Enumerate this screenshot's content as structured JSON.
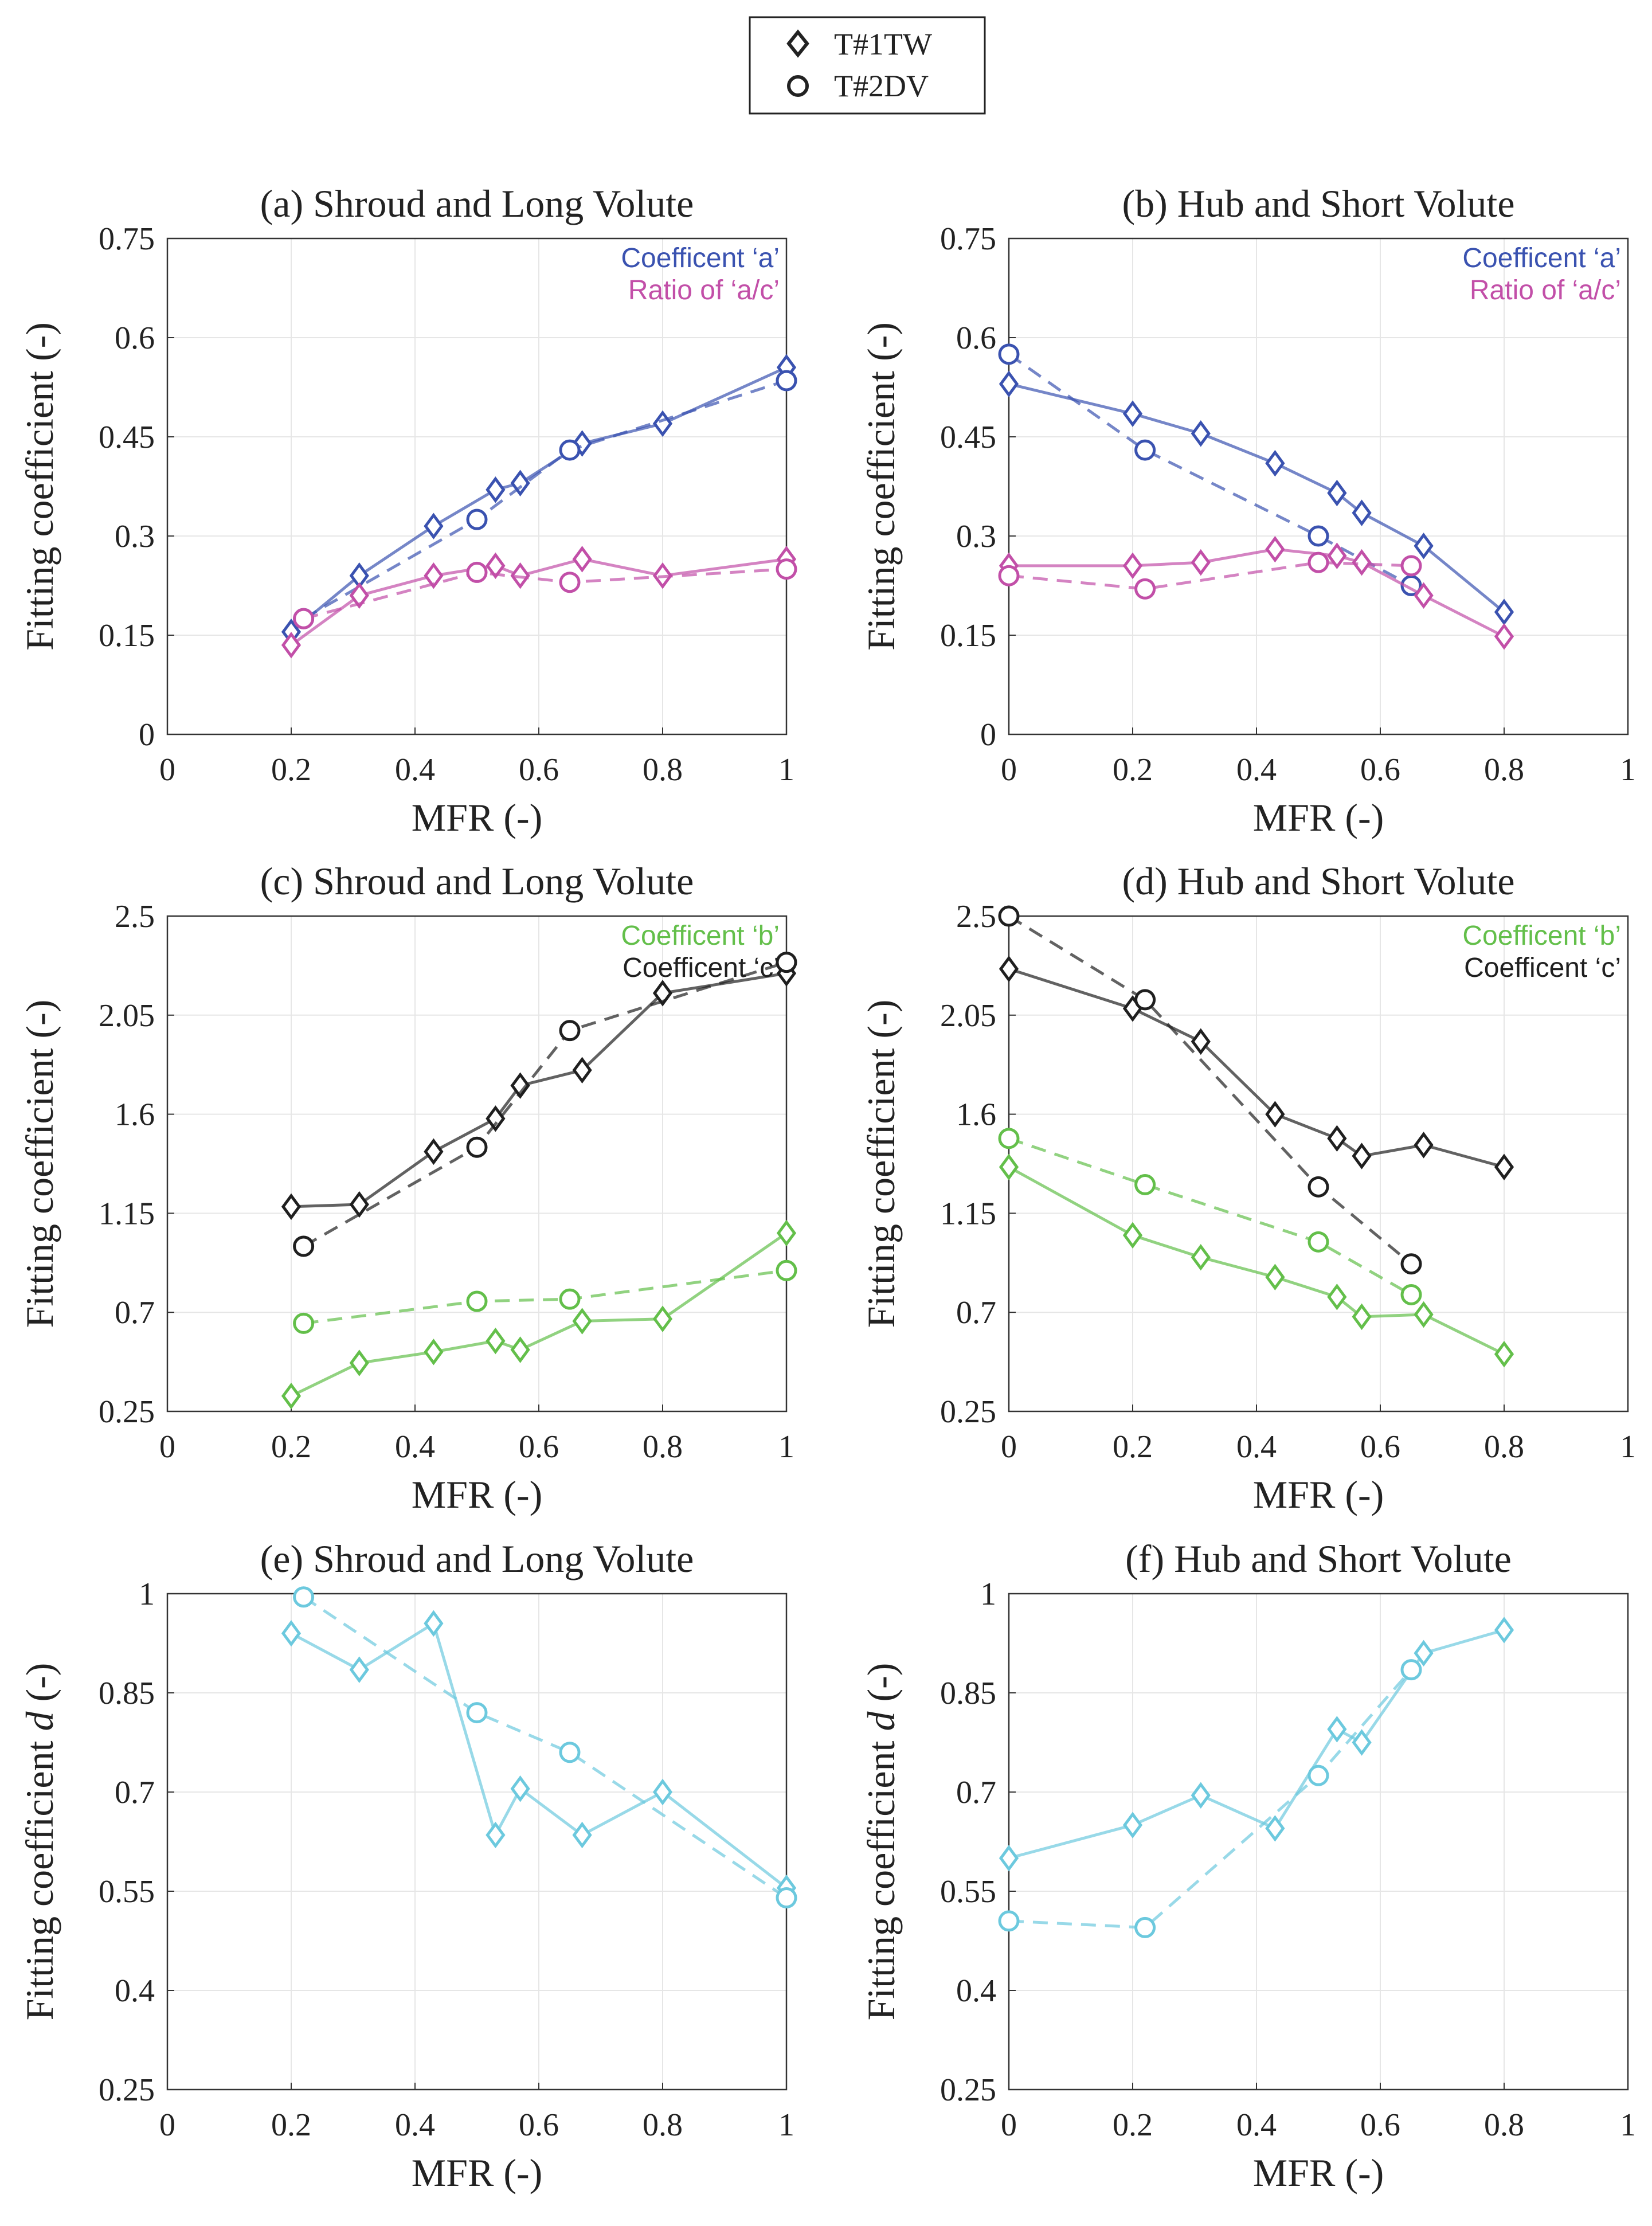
{
  "legend": {
    "entries": [
      {
        "label": "T#1TW",
        "marker": "diamond"
      },
      {
        "label": "T#2DV",
        "marker": "circle"
      }
    ]
  },
  "colors": {
    "a": "#3a52b0",
    "ac": "#c24fa8",
    "b": "#63bf4a",
    "c": "#1f1f1f",
    "d": "#6cc9de",
    "grid": "#e6e6e6",
    "axis": "#333333"
  },
  "chart_data": [
    {
      "id": "a",
      "type": "line",
      "title": "(a) Shroud and Long Volute",
      "xlabel": "MFR (-)",
      "ylabel": "Fitting coefficient  (-)",
      "xlim": [
        0,
        1
      ],
      "ylim": [
        0,
        0.75
      ],
      "xticks": [
        "0",
        "0.2",
        "0.4",
        "0.6",
        "0.8",
        "1"
      ],
      "yticks": [
        "0",
        "0.15",
        "0.3",
        "0.45",
        "0.6",
        "0.75"
      ],
      "annotations": [
        {
          "text": "Coefficent ‘a’",
          "color_key": "a"
        },
        {
          "text": "Ratio of ‘a/c’",
          "color_key": "ac"
        }
      ],
      "series": [
        {
          "name": "Coefficent 'a' T#1TW",
          "color_key": "a",
          "marker": "diamond",
          "style": "solid",
          "x": [
            0.2,
            0.31,
            0.43,
            0.53,
            0.57,
            0.67,
            0.8,
            1.0
          ],
          "y": [
            0.155,
            0.24,
            0.315,
            0.37,
            0.38,
            0.44,
            0.47,
            0.555
          ]
        },
        {
          "name": "Coefficent 'a' T#2DV",
          "color_key": "a",
          "marker": "circle",
          "style": "dashed",
          "x": [
            0.22,
            0.5,
            0.65,
            1.0
          ],
          "y": [
            0.175,
            0.325,
            0.43,
            0.535
          ]
        },
        {
          "name": "Ratio of 'a/c' T#1TW",
          "color_key": "ac",
          "marker": "diamond",
          "style": "solid",
          "x": [
            0.2,
            0.31,
            0.43,
            0.53,
            0.57,
            0.67,
            0.8,
            1.0
          ],
          "y": [
            0.135,
            0.21,
            0.24,
            0.255,
            0.24,
            0.265,
            0.24,
            0.265
          ]
        },
        {
          "name": "Ratio of 'a/c' T#2DV",
          "color_key": "ac",
          "marker": "circle",
          "style": "dashed",
          "x": [
            0.22,
            0.5,
            0.65,
            1.0
          ],
          "y": [
            0.175,
            0.245,
            0.23,
            0.25
          ]
        }
      ]
    },
    {
      "id": "b",
      "type": "line",
      "title": "(b) Hub and Short Volute",
      "xlabel": "MFR (-)",
      "ylabel": "Fitting coefficient  (-)",
      "xlim": [
        0,
        1
      ],
      "ylim": [
        0,
        0.75
      ],
      "xticks": [
        "0",
        "0.2",
        "0.4",
        "0.6",
        "0.8",
        "1"
      ],
      "yticks": [
        "0",
        "0.15",
        "0.3",
        "0.45",
        "0.6",
        "0.75"
      ],
      "annotations": [
        {
          "text": "Coefficent ‘a’",
          "color_key": "a"
        },
        {
          "text": "Ratio of ‘a/c’",
          "color_key": "ac"
        }
      ],
      "series": [
        {
          "name": "Coefficent 'a' T#1TW",
          "color_key": "a",
          "marker": "diamond",
          "style": "solid",
          "x": [
            0.0,
            0.2,
            0.31,
            0.43,
            0.53,
            0.57,
            0.67,
            0.8
          ],
          "y": [
            0.53,
            0.485,
            0.455,
            0.41,
            0.365,
            0.335,
            0.285,
            0.185
          ]
        },
        {
          "name": "Coefficent 'a' T#2DV",
          "color_key": "a",
          "marker": "circle",
          "style": "dashed",
          "x": [
            0.0,
            0.22,
            0.5,
            0.65
          ],
          "y": [
            0.575,
            0.43,
            0.3,
            0.225
          ]
        },
        {
          "name": "Ratio of 'a/c' T#1TW",
          "color_key": "ac",
          "marker": "diamond",
          "style": "solid",
          "x": [
            0.0,
            0.2,
            0.31,
            0.43,
            0.53,
            0.57,
            0.67,
            0.8
          ],
          "y": [
            0.255,
            0.255,
            0.26,
            0.28,
            0.27,
            0.26,
            0.21,
            0.148
          ]
        },
        {
          "name": "Ratio of 'a/c' T#2DV",
          "color_key": "ac",
          "marker": "circle",
          "style": "dashed",
          "x": [
            0.0,
            0.22,
            0.5,
            0.65
          ],
          "y": [
            0.24,
            0.22,
            0.26,
            0.255
          ]
        }
      ]
    },
    {
      "id": "c",
      "type": "line",
      "title": "(c) Shroud and Long Volute",
      "xlabel": "MFR (-)",
      "ylabel": "Fitting coefficient  (-)",
      "xlim": [
        0,
        1
      ],
      "ylim": [
        0.25,
        2.5
      ],
      "xticks": [
        "0",
        "0.2",
        "0.4",
        "0.6",
        "0.8",
        "1"
      ],
      "yticks": [
        "0.25",
        "0.7",
        "1.15",
        "1.6",
        "2.05",
        "2.5"
      ],
      "annotations": [
        {
          "text": "Coefficent ‘b’",
          "color_key": "b"
        },
        {
          "text": "Coefficent ‘c’",
          "color_key": "c"
        }
      ],
      "series": [
        {
          "name": "Coefficent 'b' T#1TW",
          "color_key": "b",
          "marker": "diamond",
          "style": "solid",
          "x": [
            0.2,
            0.31,
            0.43,
            0.53,
            0.57,
            0.67,
            0.8,
            1.0
          ],
          "y": [
            0.32,
            0.47,
            0.52,
            0.57,
            0.53,
            0.66,
            0.67,
            1.06
          ]
        },
        {
          "name": "Coefficent 'b' T#2DV",
          "color_key": "b",
          "marker": "circle",
          "style": "dashed",
          "x": [
            0.22,
            0.5,
            0.65,
            1.0
          ],
          "y": [
            0.65,
            0.75,
            0.76,
            0.89
          ]
        },
        {
          "name": "Coefficent 'c' T#1TW",
          "color_key": "c",
          "marker": "diamond",
          "style": "solid",
          "x": [
            0.2,
            0.31,
            0.43,
            0.53,
            0.57,
            0.67,
            0.8,
            1.0
          ],
          "y": [
            1.18,
            1.19,
            1.43,
            1.58,
            1.73,
            1.8,
            2.15,
            2.24
          ]
        },
        {
          "name": "Coefficent 'c' T#2DV",
          "color_key": "c",
          "marker": "circle",
          "style": "dashed",
          "x": [
            0.22,
            0.5,
            0.65,
            1.0
          ],
          "y": [
            1.0,
            1.45,
            1.98,
            2.29
          ]
        }
      ]
    },
    {
      "id": "d",
      "type": "line",
      "title": "(d) Hub and Short Volute",
      "xlabel": "MFR (-)",
      "ylabel": "Fitting coefficient  (-)",
      "xlim": [
        0,
        1
      ],
      "ylim": [
        0.25,
        2.5
      ],
      "xticks": [
        "0",
        "0.2",
        "0.4",
        "0.6",
        "0.8",
        "1"
      ],
      "yticks": [
        "0.25",
        "0.7",
        "1.15",
        "1.6",
        "2.05",
        "2.5"
      ],
      "annotations": [
        {
          "text": "Coefficent ‘b’",
          "color_key": "b"
        },
        {
          "text": "Coefficent ‘c’",
          "color_key": "c"
        }
      ],
      "series": [
        {
          "name": "Coefficent 'b' T#1TW",
          "color_key": "b",
          "marker": "diamond",
          "style": "solid",
          "x": [
            0.0,
            0.2,
            0.31,
            0.43,
            0.53,
            0.57,
            0.67,
            0.8
          ],
          "y": [
            1.36,
            1.05,
            0.95,
            0.86,
            0.77,
            0.68,
            0.69,
            0.51
          ]
        },
        {
          "name": "Coefficent 'b' T#2DV",
          "color_key": "b",
          "marker": "circle",
          "style": "dashed",
          "x": [
            0.0,
            0.22,
            0.5,
            0.65
          ],
          "y": [
            1.49,
            1.28,
            1.02,
            0.78
          ]
        },
        {
          "name": "Coefficent 'c' T#1TW",
          "color_key": "c",
          "marker": "diamond",
          "style": "solid",
          "x": [
            0.0,
            0.2,
            0.31,
            0.43,
            0.53,
            0.57,
            0.67,
            0.8
          ],
          "y": [
            2.26,
            2.08,
            1.93,
            1.6,
            1.49,
            1.41,
            1.46,
            1.36
          ]
        },
        {
          "name": "Coefficent 'c' T#2DV",
          "color_key": "c",
          "marker": "circle",
          "style": "dashed",
          "x": [
            0.0,
            0.22,
            0.5,
            0.65
          ],
          "y": [
            2.5,
            2.12,
            1.27,
            0.92
          ]
        }
      ]
    },
    {
      "id": "e",
      "type": "line",
      "title": "(e) Shroud and Long Volute",
      "xlabel": "MFR (-)",
      "ylabel": "Fitting coefficient d (-)",
      "ylabel_italic": "d",
      "xlim": [
        0,
        1
      ],
      "ylim": [
        0.25,
        1.0
      ],
      "xticks": [
        "0",
        "0.2",
        "0.4",
        "0.6",
        "0.8",
        "1"
      ],
      "yticks": [
        "0.25",
        "0.4",
        "0.55",
        "0.7",
        "0.85",
        "1"
      ],
      "annotations": [],
      "series": [
        {
          "name": "Coefficent 'd' T#1TW",
          "color_key": "d",
          "marker": "diamond",
          "style": "solid",
          "x": [
            0.2,
            0.31,
            0.43,
            0.53,
            0.57,
            0.67,
            0.8,
            1.0
          ],
          "y": [
            0.94,
            0.885,
            0.955,
            0.635,
            0.705,
            0.635,
            0.7,
            0.555
          ]
        },
        {
          "name": "Coefficent 'd' T#2DV",
          "color_key": "d",
          "marker": "circle",
          "style": "dashed",
          "x": [
            0.22,
            0.5,
            0.65,
            1.0
          ],
          "y": [
            0.995,
            0.82,
            0.76,
            0.54
          ]
        }
      ]
    },
    {
      "id": "f",
      "type": "line",
      "title": "(f) Hub and Short Volute",
      "xlabel": "MFR (-)",
      "ylabel": "Fitting coefficient d (-)",
      "ylabel_italic": "d",
      "xlim": [
        0,
        1
      ],
      "ylim": [
        0.25,
        1.0
      ],
      "xticks": [
        "0",
        "0.2",
        "0.4",
        "0.6",
        "0.8",
        "1"
      ],
      "yticks": [
        "0.25",
        "0.4",
        "0.55",
        "0.7",
        "0.85",
        "1"
      ],
      "annotations": [],
      "series": [
        {
          "name": "Coefficent 'd' T#1TW",
          "color_key": "d",
          "marker": "diamond",
          "style": "solid",
          "x": [
            0.0,
            0.2,
            0.31,
            0.43,
            0.53,
            0.57,
            0.67,
            0.8
          ],
          "y": [
            0.6,
            0.65,
            0.695,
            0.645,
            0.795,
            0.775,
            0.91,
            0.945
          ]
        },
        {
          "name": "Coefficent 'd' T#2DV",
          "color_key": "d",
          "marker": "circle",
          "style": "dashed",
          "x": [
            0.0,
            0.22,
            0.5,
            0.65
          ],
          "y": [
            0.505,
            0.495,
            0.725,
            0.885
          ]
        }
      ]
    }
  ]
}
